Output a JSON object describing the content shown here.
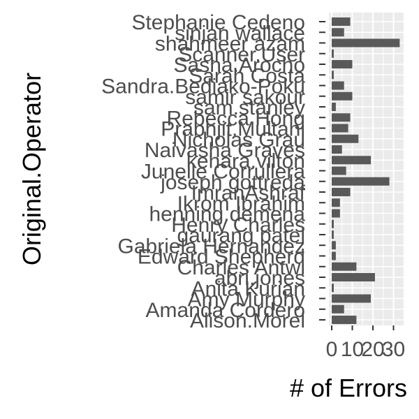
{
  "chart_data": {
    "type": "bar",
    "orientation": "horizontal",
    "xlabel": "# of Errors",
    "ylabel": "Original.Operator",
    "grid": true,
    "xlim": [
      0,
      35
    ],
    "xticks": [
      0,
      10,
      20,
      30
    ],
    "xtick_labels": [
      "0",
      "10",
      "20",
      "30"
    ],
    "categories": [
      "Stephanie Cedeno",
      "sinjan wallace",
      "shahmeer azam",
      "Scanner.User",
      "Sasha.Arocho",
      "Sarah Costa",
      "Sandra.Bediako-Poku",
      "samir sakour",
      "sam.stanley",
      "Rebecca Hong",
      "Prabhjit.Multani",
      "Nicholas Grau",
      "Naivasha Graves",
      "kehara.vilton",
      "Junelle Corrullera",
      "joseph gottreda",
      "ImranAshraf",
      "Ikrom Ibrahim",
      "henning.demena",
      "Henry Charles",
      "gaurang patel",
      "Gabriela Hernandez",
      "Edward Shepherd",
      "Charles Antwi",
      "abri.jones",
      "Anita Kurian",
      "Amy Murphy",
      "Amanda Cordero",
      "Alison.Morel"
    ],
    "values": [
      9,
      6,
      33,
      1,
      10,
      1,
      6,
      10,
      2,
      9,
      8,
      13,
      5,
      19,
      7,
      28,
      9,
      4,
      4,
      1,
      1,
      2,
      2,
      12,
      21,
      1,
      19,
      6,
      12
    ]
  },
  "colors": {
    "bar": "#595959",
    "panel_background": "#ebebeb",
    "grid_major": "#ffffff",
    "text": "#4d4d4d",
    "axis_title": "#000000"
  }
}
